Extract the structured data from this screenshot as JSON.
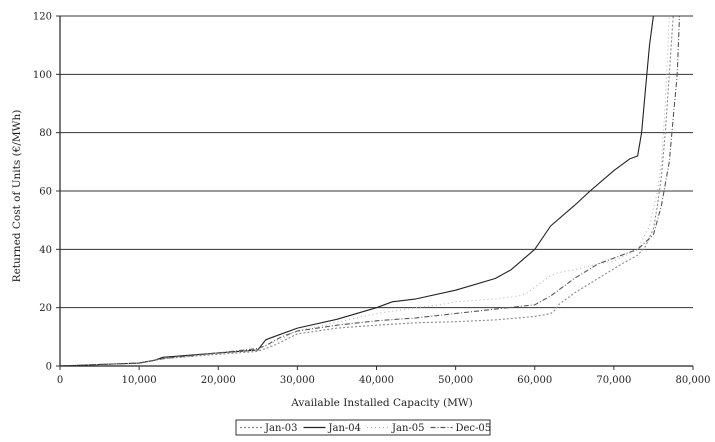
{
  "chart_data": {
    "type": "line",
    "title": "",
    "xlabel": "Available Installed Capacity (MW)",
    "ylabel": "Returned Cost of Units (€/MWh)",
    "xlim": [
      0,
      80000
    ],
    "ylim": [
      0,
      120
    ],
    "x_ticks": [
      0,
      10000,
      20000,
      30000,
      40000,
      50000,
      60000,
      70000,
      80000
    ],
    "x_tick_labels": [
      "0",
      "10,000",
      "20,000",
      "30,000",
      "40,000",
      "50,000",
      "60,000",
      "70,000",
      "80,000"
    ],
    "y_ticks": [
      0,
      20,
      40,
      60,
      80,
      100,
      120
    ],
    "y_tick_labels": [
      "0",
      "20",
      "40",
      "60",
      "80",
      "100",
      "120"
    ],
    "grid": "horizontal",
    "legend_position": "bottom",
    "series": [
      {
        "name": "Jan-03",
        "color": "#8a8a8a",
        "dash": "2,2",
        "x": [
          0,
          5000,
          10000,
          13000,
          20000,
          25000,
          27000,
          30000,
          35000,
          40000,
          45000,
          50000,
          55000,
          58000,
          60000,
          61000,
          62000,
          62500,
          63000,
          65000,
          68000,
          71000,
          73000,
          74000,
          75000,
          75500,
          76000,
          76500,
          77000,
          77500
        ],
        "values": [
          0,
          0.5,
          1,
          2.5,
          4,
          5,
          7,
          11,
          13,
          14,
          14.8,
          15.2,
          15.8,
          16.5,
          17,
          17.5,
          18,
          19,
          21,
          25,
          30,
          35,
          38,
          41,
          47,
          55,
          65,
          80,
          100,
          120
        ]
      },
      {
        "name": "Jan-04",
        "color": "#222222",
        "dash": "",
        "x": [
          0,
          5000,
          10000,
          12000,
          13000,
          20000,
          25000,
          26000,
          27000,
          30000,
          35000,
          40000,
          42000,
          45000,
          50000,
          55000,
          57000,
          60000,
          62000,
          65000,
          67000,
          70000,
          72000,
          73000,
          73500,
          74000,
          74500,
          75000
        ],
        "values": [
          0,
          0.5,
          1,
          2,
          3,
          4.5,
          5.5,
          9,
          10,
          13,
          16,
          20,
          22,
          23,
          26,
          30,
          33,
          40,
          48,
          55,
          60,
          67,
          71,
          72,
          80,
          95,
          110,
          120
        ]
      },
      {
        "name": "Jan-05",
        "color": "#b5b5b5",
        "dash": "1,3",
        "x": [
          0,
          5000,
          10000,
          13000,
          20000,
          25000,
          26000,
          27000,
          30000,
          35000,
          40000,
          45000,
          48000,
          50000,
          55000,
          58000,
          59000,
          60000,
          61000,
          62000,
          63000,
          65000,
          68000,
          70000,
          73000,
          74500,
          75500,
          76000,
          76500,
          77000
        ],
        "values": [
          0,
          0.5,
          1,
          2.5,
          4.5,
          5.5,
          6,
          8,
          12,
          15,
          18,
          20,
          21,
          22,
          23,
          24,
          25,
          27,
          29,
          31,
          32,
          33,
          35,
          36,
          40,
          48,
          60,
          70,
          90,
          120
        ]
      },
      {
        "name": "Dec-05",
        "color": "#555555",
        "dash": "5,2,1,2",
        "x": [
          0,
          5000,
          10000,
          13000,
          20000,
          25000,
          26000,
          28000,
          30000,
          35000,
          40000,
          45000,
          50000,
          55000,
          60000,
          62000,
          65000,
          68000,
          70000,
          73000,
          75000,
          76000,
          77000,
          77500,
          78000,
          78300
        ],
        "values": [
          0,
          0.5,
          1,
          2.5,
          4.5,
          6,
          7,
          10,
          12,
          14,
          15.5,
          16.5,
          18,
          19.5,
          21,
          24,
          30,
          35,
          37,
          40,
          45,
          55,
          70,
          85,
          100,
          120
        ]
      }
    ]
  }
}
